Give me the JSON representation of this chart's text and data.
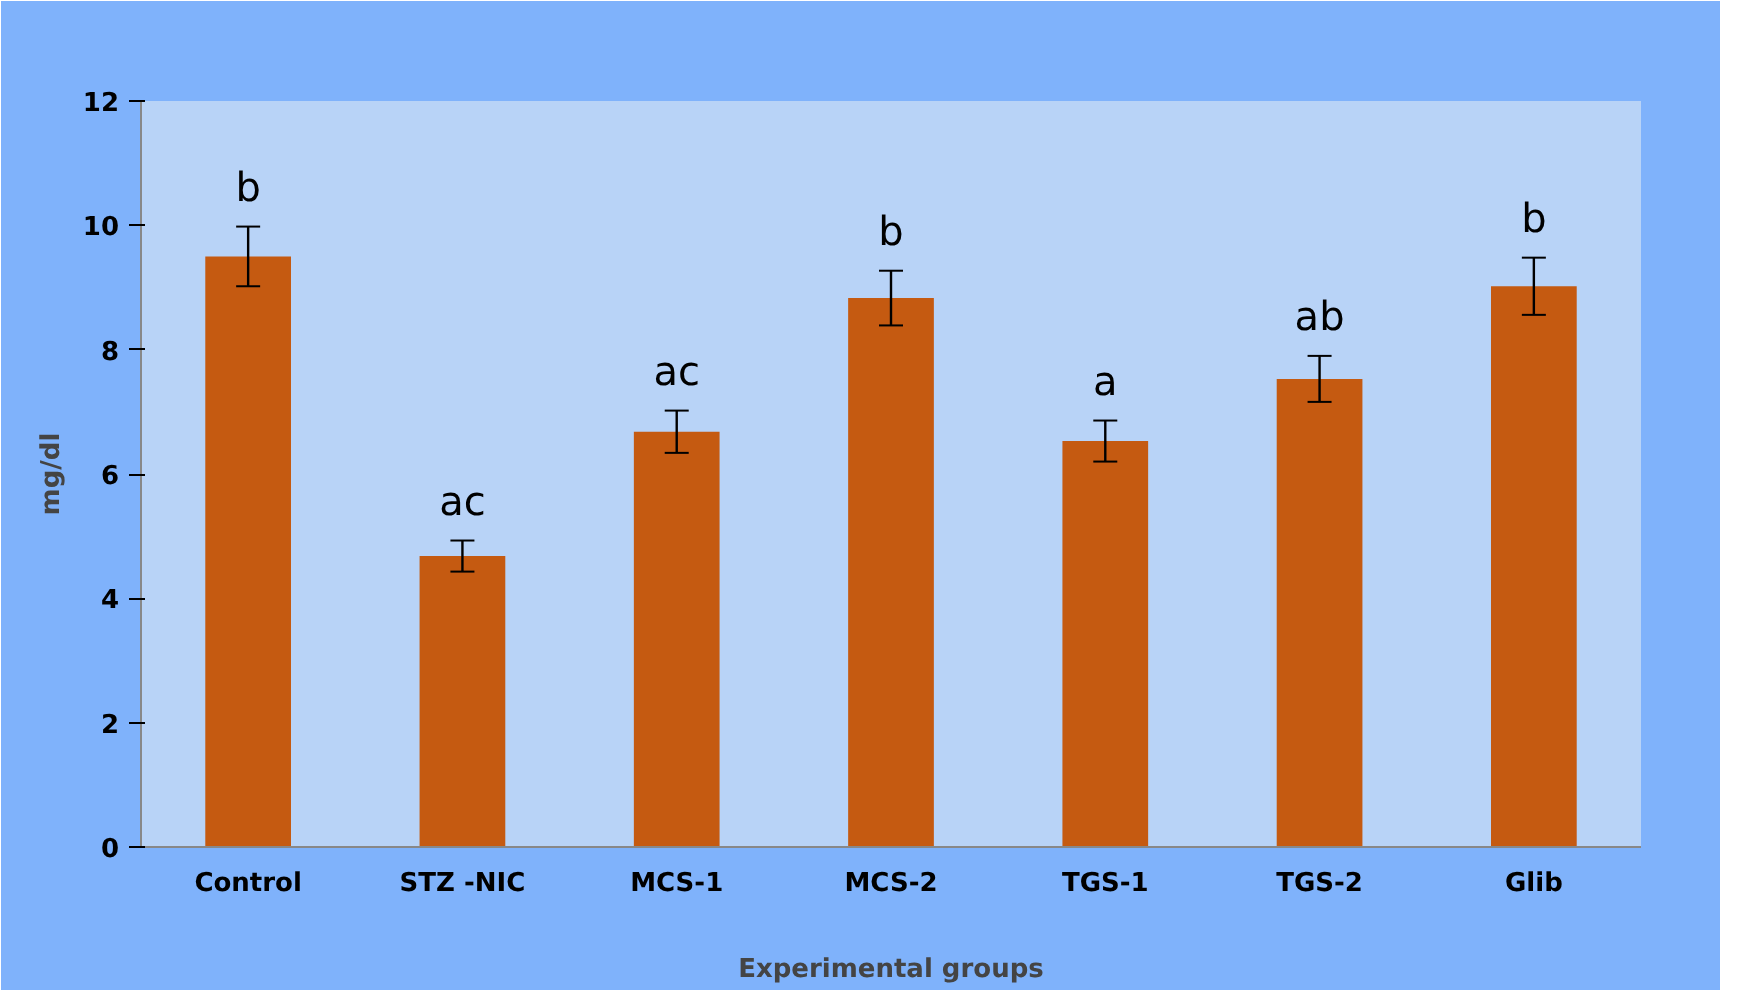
{
  "chart_data": {
    "type": "bar",
    "xlabel": "Experimental groups",
    "ylabel": "mg/dl",
    "categories": [
      "Control",
      "STZ -NIC",
      "MCS-1",
      "MCS-2",
      "TGS-1",
      "TGS-2",
      "Glib"
    ],
    "values": [
      9.5,
      4.68,
      6.68,
      8.83,
      6.53,
      7.53,
      9.02
    ],
    "errors": [
      0.48,
      0.25,
      0.34,
      0.44,
      0.33,
      0.37,
      0.46
    ],
    "color": "#c55a11",
    "ylim": [
      0,
      12
    ],
    "yticks": [
      0,
      2,
      4,
      6,
      8,
      10,
      12
    ],
    "grid": false,
    "value_labels": [
      "b",
      "ac",
      "ac",
      "b",
      "a",
      "ab",
      "b"
    ]
  }
}
